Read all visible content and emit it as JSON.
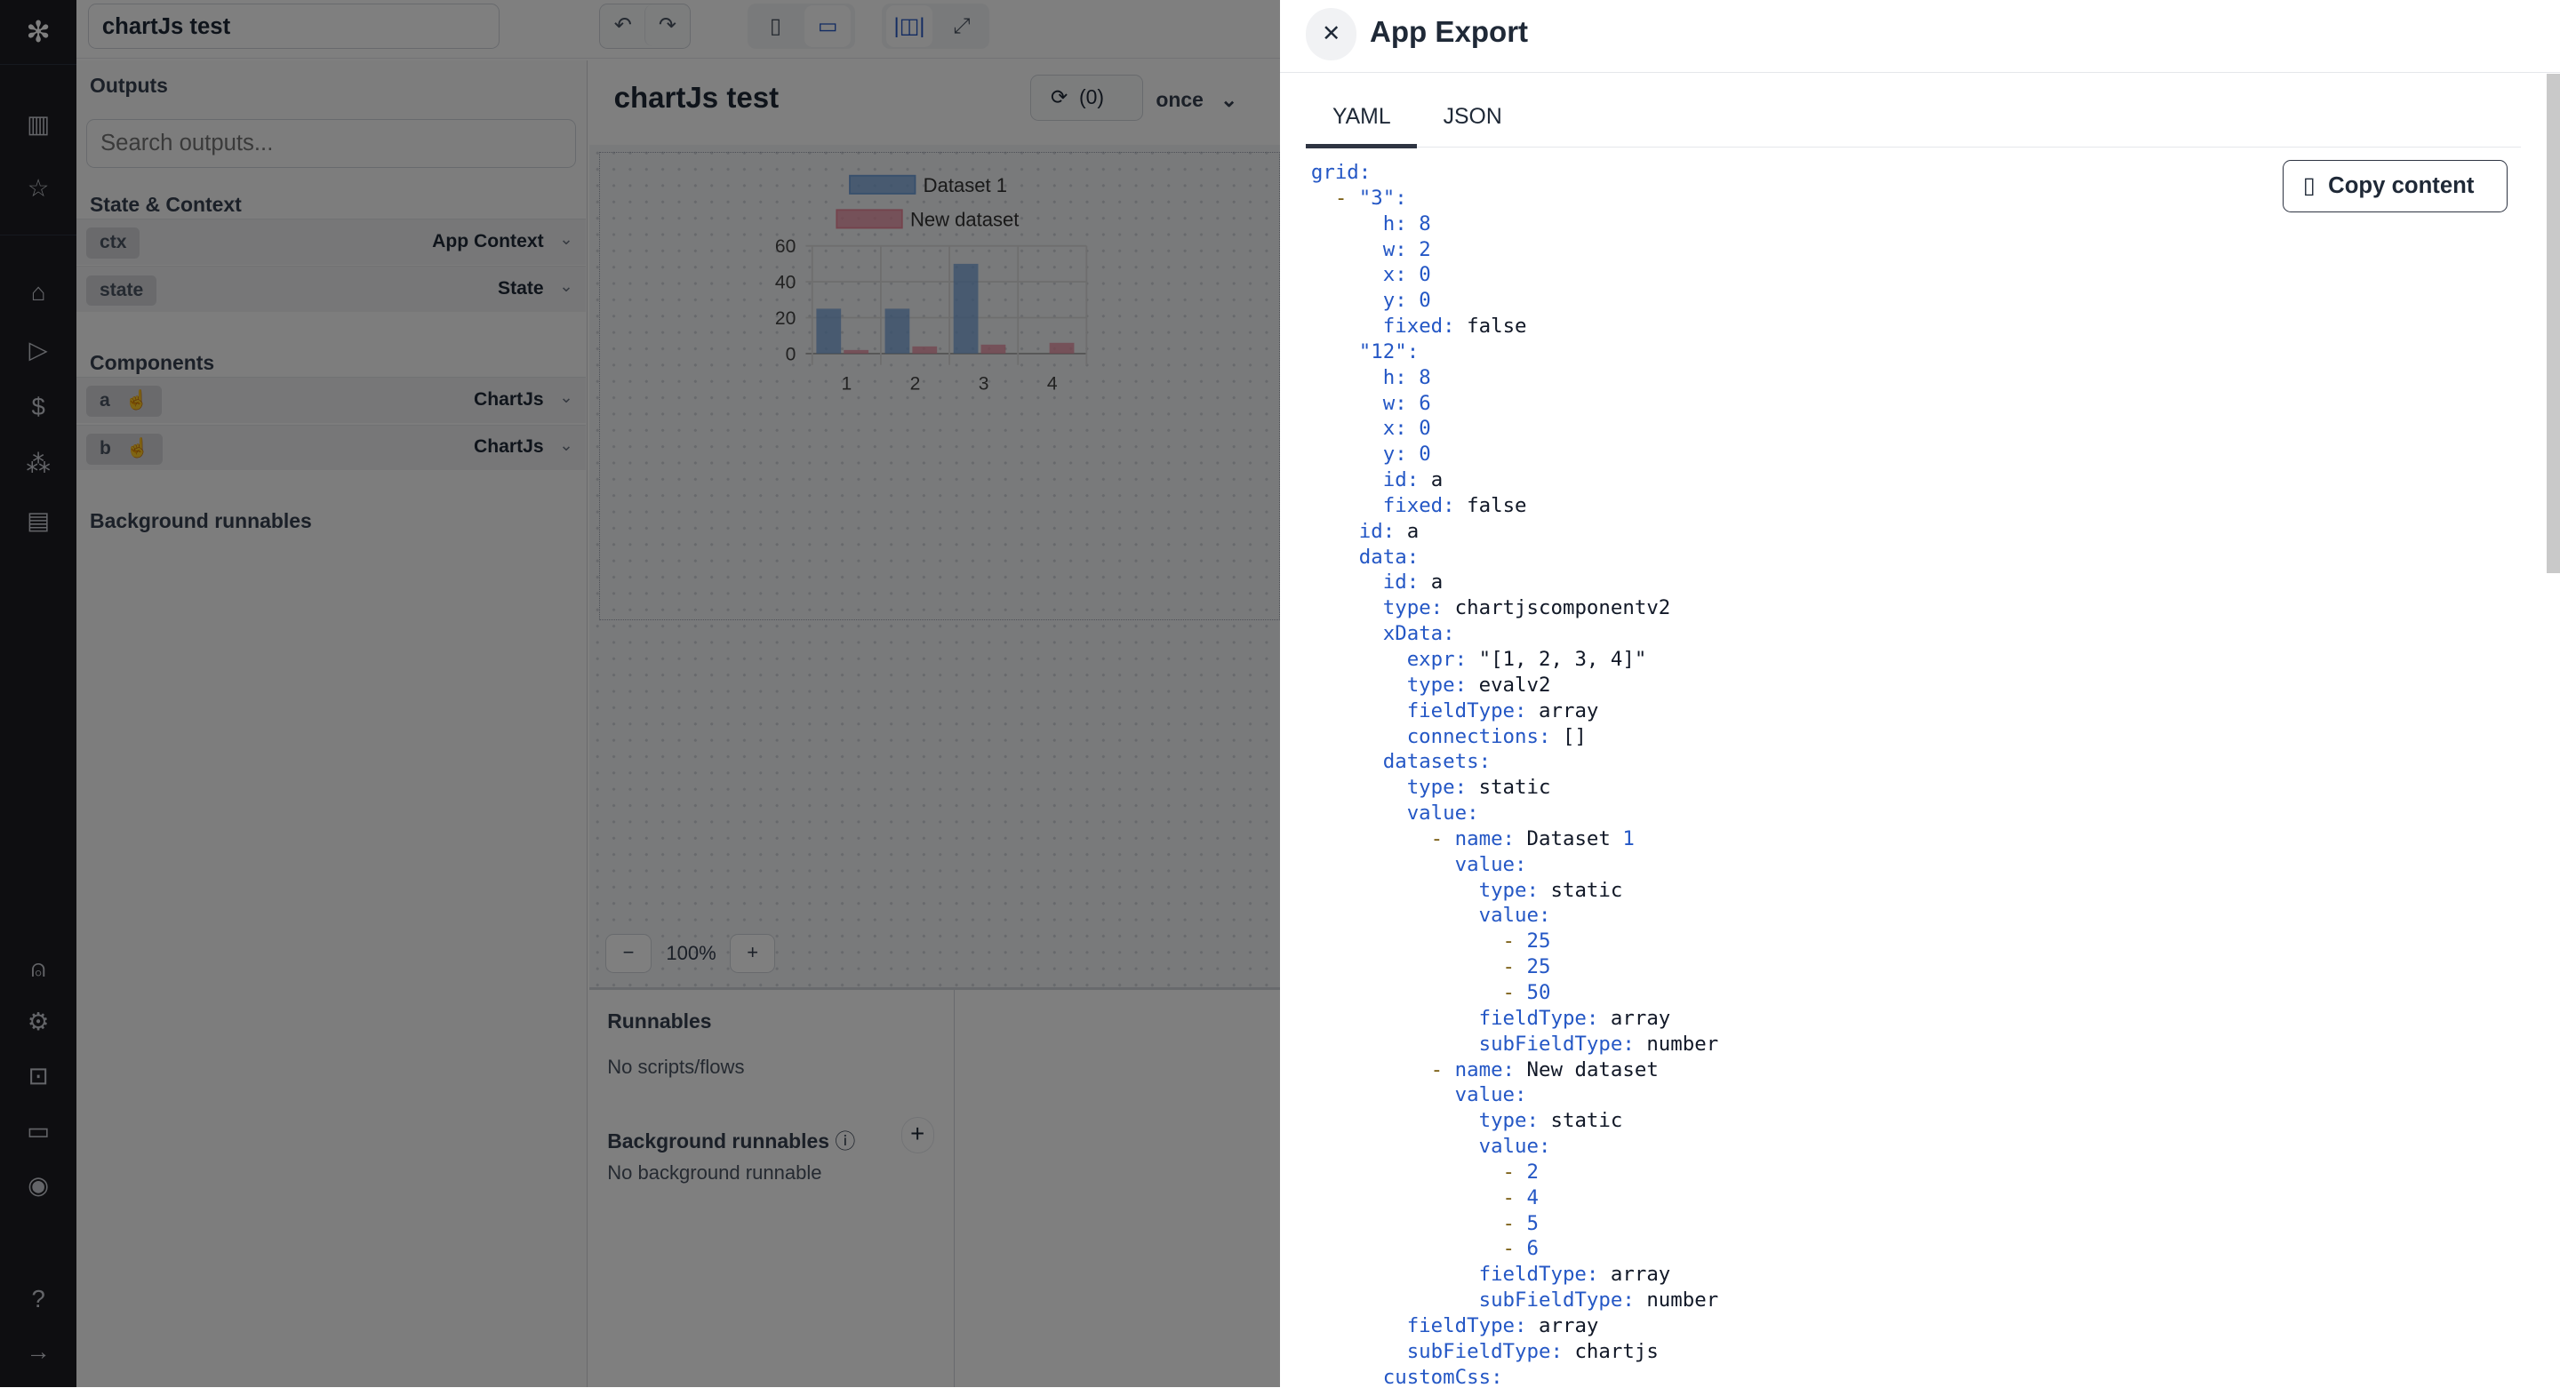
{
  "nav": {
    "top_icons": [
      "logo-icon",
      "building-icon",
      "star-icon"
    ],
    "mid_icons": [
      "home-icon",
      "play-icon",
      "dollar-icon",
      "resources-icon",
      "calendar-icon"
    ],
    "bottom_icons": [
      "user-icon",
      "gear-icon",
      "bot-icon",
      "folder-icon",
      "eye-icon",
      "help-icon",
      "arrow-right-icon"
    ]
  },
  "topbar": {
    "app_name": "chartJs test"
  },
  "left": {
    "outputs": "Outputs",
    "search_placeholder": "Search outputs...",
    "state_title": "State & Context",
    "state_rows": [
      {
        "tag": "ctx",
        "label": "App Context"
      },
      {
        "tag": "state",
        "label": "State"
      }
    ],
    "components_title": "Components",
    "components": [
      {
        "tag": "a",
        "label": "ChartJs"
      },
      {
        "tag": "b",
        "label": "ChartJs"
      }
    ],
    "bg_title": "Background runnables"
  },
  "main": {
    "title": "chartJs test",
    "refresh_count": "(0)",
    "refresh_mode": "once",
    "zoom": "100%",
    "runnables_title": "Runnables",
    "runnables_empty": "No scripts/flows",
    "bg_title": "Background runnables",
    "bg_empty": "No background runnable"
  },
  "chart_data": {
    "type": "bar",
    "categories": [
      "1",
      "2",
      "3",
      "4"
    ],
    "ylim": [
      0,
      60
    ],
    "yticks": [
      "0",
      "20",
      "40",
      "60"
    ],
    "grid": true,
    "legend": "top",
    "series": [
      {
        "name": "Dataset 1",
        "values": [
          25,
          25,
          50,
          null
        ],
        "color": "#6f9fd8"
      },
      {
        "name": "New dataset",
        "values": [
          2,
          4,
          5,
          6
        ],
        "color": "#e8879b"
      }
    ]
  },
  "drawer": {
    "title": "App Export",
    "tabs": [
      "YAML",
      "JSON"
    ],
    "active_tab": "YAML",
    "copy_label": "Copy content",
    "yaml": [
      "grid:",
      "  - \"3\":",
      "      h: 8",
      "      w: 2",
      "      x: 0",
      "      y: 0",
      "      fixed: false",
      "    \"12\":",
      "      h: 8",
      "      w: 6",
      "      x: 0",
      "      y: 0",
      "      id: a",
      "      fixed: false",
      "    id: a",
      "    data:",
      "      id: a",
      "      type: chartjscomponentv2",
      "      xData:",
      "        expr: \"[1, 2, 3, 4]\"",
      "        type: evalv2",
      "        fieldType: array",
      "        connections: []",
      "      datasets:",
      "        type: static",
      "        value:",
      "          - name: Dataset 1",
      "            value:",
      "              type: static",
      "              value:",
      "                - 25",
      "                - 25",
      "                - 50",
      "              fieldType: array",
      "              subFieldType: number",
      "          - name: New dataset",
      "            value:",
      "              type: static",
      "              value:",
      "                - 2",
      "                - 4",
      "                - 5",
      "                - 6",
      "              fieldType: array",
      "              subFieldType: number",
      "        fieldType: array",
      "        subFieldType: chartjs",
      "      customCss:"
    ]
  }
}
